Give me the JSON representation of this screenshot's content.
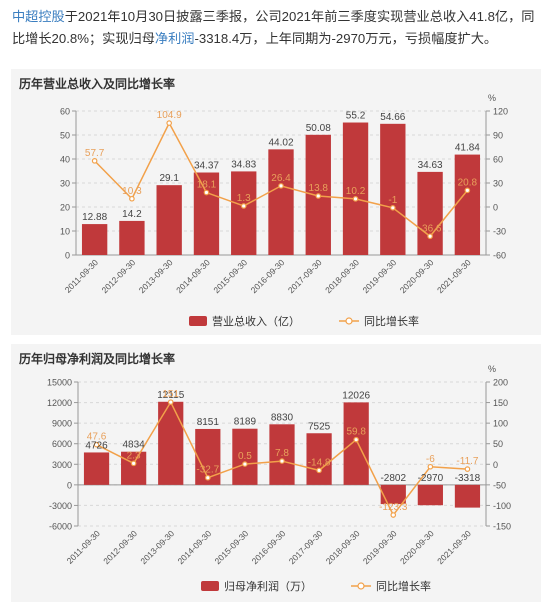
{
  "intro": {
    "company": "中超控股",
    "part1": "于2021年10月30日披露三季报，公司2021年前三季度实现营业总收入41.8亿，同比增长20.8%；实现归母",
    "profit_term": "净利润",
    "part2": "-3318.4万，上年同期为-2970万元，亏损幅度扩大。"
  },
  "colors": {
    "bar": "#c0393b",
    "line": "#f2a14a",
    "axis": "#999999",
    "grid": "#d7d7d7",
    "label": "#444444",
    "lineLabel": "#e8a05b",
    "panel": "#f4f4f4"
  },
  "chart_data": [
    {
      "type": "bar",
      "title": "历年营业总收入及同比增长率",
      "categories": [
        "2011-09-30",
        "2012-09-30",
        "2013-09-30",
        "2014-09-30",
        "2015-09-30",
        "2016-09-30",
        "2017-09-30",
        "2018-09-30",
        "2019-09-30",
        "2020-09-30",
        "2021-09-30"
      ],
      "series": [
        {
          "name": "营业总收入（亿）",
          "type": "bar",
          "axis": "left",
          "values": [
            12.88,
            14.2,
            29.1,
            34.37,
            34.83,
            44.02,
            50.08,
            55.2,
            54.66,
            34.63,
            41.84
          ]
        },
        {
          "name": "同比增长率",
          "type": "line",
          "axis": "right",
          "values": [
            57.7,
            10.3,
            104.9,
            18.1,
            1.3,
            26.4,
            13.8,
            10.2,
            -1,
            -36.6,
            20.8
          ]
        }
      ],
      "ylim": [
        0,
        60
      ],
      "yticks": [
        0,
        10,
        20,
        30,
        40,
        50,
        60
      ],
      "y2lim": [
        -60,
        120
      ],
      "y2ticks": [
        -60,
        -30,
        0,
        30,
        60,
        90,
        120
      ],
      "y2unit": "%",
      "legend": "bottom"
    },
    {
      "type": "bar",
      "title": "历年归母净利润及同比增长率",
      "categories": [
        "2011-09-30",
        "2012-09-30",
        "2013-09-30",
        "2014-09-30",
        "2015-09-30",
        "2016-09-30",
        "2017-09-30",
        "2018-09-30",
        "2019-09-30",
        "2020-09-30",
        "2021-09-30"
      ],
      "series": [
        {
          "name": "归母净利润（万）",
          "type": "bar",
          "axis": "left",
          "values": [
            4726,
            4834,
            12115,
            8151,
            8189,
            8830,
            7525,
            12026,
            -2802,
            -2970,
            -3318
          ]
        },
        {
          "name": "同比增长率",
          "type": "line",
          "axis": "right",
          "values": [
            47.6,
            2.3,
            151,
            -32.7,
            0.5,
            7.8,
            -14.8,
            59.8,
            -123.3,
            -6,
            -11.7
          ]
        }
      ],
      "ylim": [
        -6000,
        15000
      ],
      "yticks": [
        -6000,
        -3000,
        0,
        3000,
        6000,
        9000,
        12000,
        15000
      ],
      "y2lim": [
        -150,
        200
      ],
      "y2ticks": [
        -150,
        -100,
        -50,
        0,
        50,
        100,
        150,
        200
      ],
      "y2unit": "%",
      "legend": "bottom"
    }
  ]
}
